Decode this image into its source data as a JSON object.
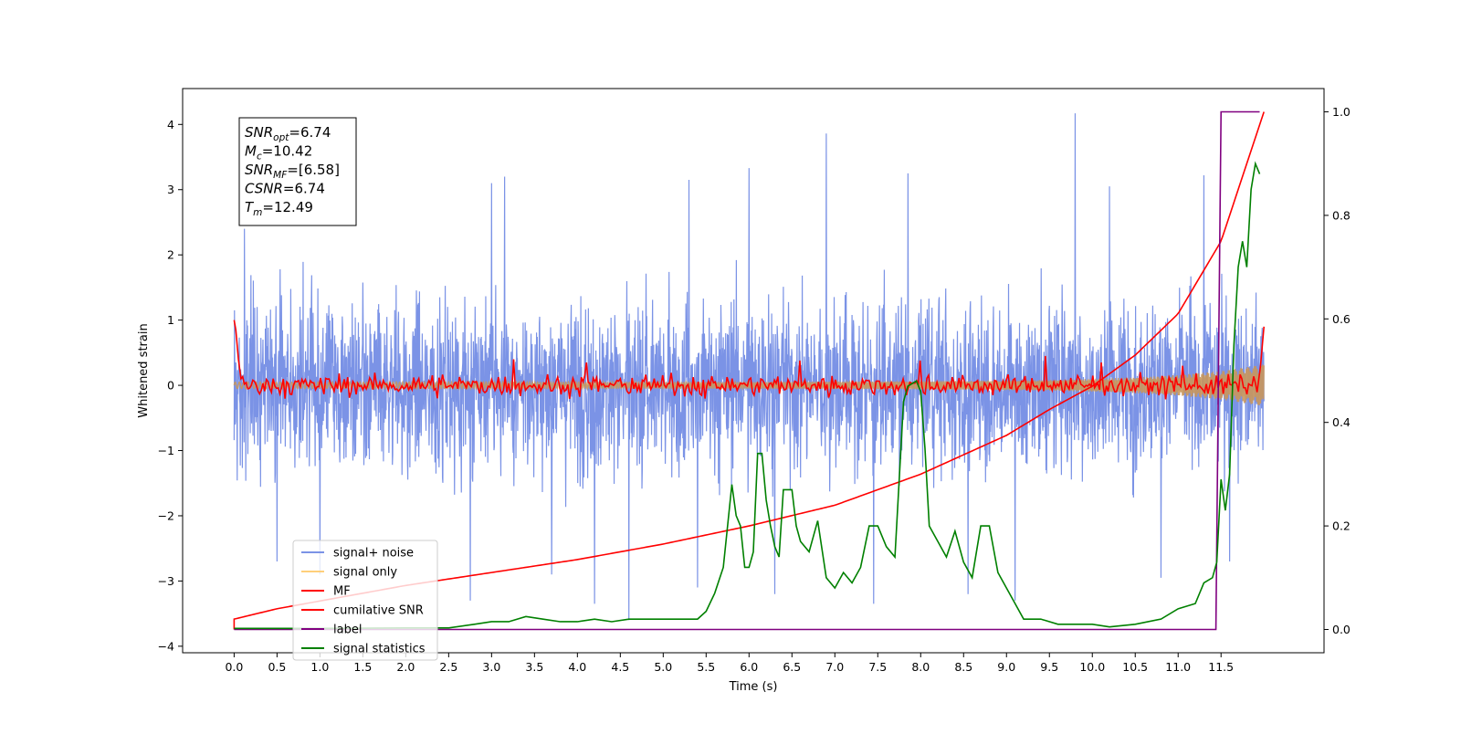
{
  "chart_data": {
    "type": "line",
    "xlabel": "Time (s)",
    "ylabel_left": "Whitened strain",
    "ylabel_right": "",
    "xlim": [
      -0.6,
      12.7
    ],
    "ylim_left": [
      -4.1,
      4.55
    ],
    "ylim_right": [
      -0.045,
      1.045
    ],
    "x_ticks": [
      0.0,
      0.5,
      1.0,
      1.5,
      2.0,
      2.5,
      3.0,
      3.5,
      4.0,
      4.5,
      5.0,
      5.5,
      6.0,
      6.5,
      7.0,
      7.5,
      8.0,
      8.5,
      9.0,
      9.5,
      10.0,
      10.5,
      11.0,
      11.5
    ],
    "x_tick_labels": [
      "0.0",
      "0.5",
      "1.0",
      "1.5",
      "2.0",
      "2.5",
      "3.0",
      "3.5",
      "4.0",
      "4.5",
      "5.0",
      "5.5",
      "6.0",
      "6.5",
      "7.0",
      "7.5",
      "8.0",
      "8.5",
      "9.0",
      "9.5",
      "10.0",
      "10.5",
      "11.0",
      "11.5"
    ],
    "y_left_ticks": [
      4,
      3,
      2,
      1,
      0,
      -1,
      -2,
      -3,
      -4
    ],
    "y_left_tick_labels": [
      "4",
      "3",
      "2",
      "1",
      "0",
      "−1",
      "−2",
      "−3",
      "−4"
    ],
    "y_right_ticks": [
      1.0,
      0.8,
      0.6,
      0.4,
      0.2,
      0.0
    ],
    "y_right_tick_labels": [
      "1.0",
      "0.8",
      "0.6",
      "0.4",
      "0.2",
      "0.0"
    ],
    "grid": false,
    "legend_position": "lower-left",
    "info_box": [
      {
        "base": "SNR",
        "sub": "opt",
        "value": "=6.74"
      },
      {
        "base": "M",
        "sub": "c",
        "value": "=10.42"
      },
      {
        "base": "SNR",
        "sub": "MF",
        "value": "=[6.58]"
      },
      {
        "base": "CSNR",
        "sub": "",
        "value": "=6.74"
      },
      {
        "base": "T",
        "sub": "m",
        "value": "=12.49"
      }
    ],
    "series": [
      {
        "name": "signal+ noise",
        "axis": "left",
        "color": "#7b93e6",
        "description_values": "noisy whitened strain, roughly between -2.3 and 2.3 with peaks up to 4.17 near 9.8 s and dips to -3.6 near 4.6 s",
        "x_range": [
          0.0,
          12.0
        ],
        "envelope": {
          "upper": 2.1,
          "lower": -2.2
        },
        "peaks": [
          [
            0.12,
            2.4
          ],
          [
            3.0,
            3.1
          ],
          [
            3.15,
            3.2
          ],
          [
            5.3,
            3.15
          ],
          [
            6.0,
            3.33
          ],
          [
            6.9,
            3.86
          ],
          [
            7.85,
            3.25
          ],
          [
            9.8,
            4.17
          ],
          [
            10.2,
            3.05
          ],
          [
            11.3,
            3.22
          ]
        ],
        "dips": [
          [
            0.5,
            -2.7
          ],
          [
            1.0,
            -2.9
          ],
          [
            2.75,
            -3.3
          ],
          [
            3.7,
            -2.9
          ],
          [
            4.2,
            -3.35
          ],
          [
            4.6,
            -3.6
          ],
          [
            5.4,
            -3.1
          ],
          [
            6.3,
            -3.2
          ],
          [
            7.45,
            -3.35
          ],
          [
            8.55,
            -3.2
          ],
          [
            9.1,
            -3.3
          ],
          [
            10.8,
            -2.95
          ],
          [
            11.6,
            -2.7
          ]
        ]
      },
      {
        "name": "signal only",
        "axis": "left",
        "color": "#ffcf7a",
        "x": [
          0.0,
          6.0,
          8.0,
          9.5,
          10.5,
          11.0,
          11.5,
          12.0
        ],
        "amplitude": [
          0.05,
          0.05,
          0.06,
          0.08,
          0.12,
          0.16,
          0.22,
          0.32
        ]
      },
      {
        "name": "MF",
        "axis": "left",
        "color": "#ff0000",
        "start_value": 1.0,
        "end_value": 0.9,
        "noise_amplitude": 0.12,
        "x_range": [
          0.0,
          12.0
        ]
      },
      {
        "name": "cumilative SNR",
        "axis": "right",
        "color": "#ff0000",
        "x": [
          0.0,
          0.5,
          1.0,
          2.0,
          3.0,
          4.0,
          5.0,
          6.0,
          7.0,
          8.0,
          9.0,
          9.5,
          10.0,
          10.5,
          11.0,
          11.5,
          12.0
        ],
        "y": [
          0.02,
          0.04,
          0.055,
          0.085,
          0.11,
          0.135,
          0.165,
          0.2,
          0.24,
          0.3,
          0.375,
          0.425,
          0.47,
          0.53,
          0.61,
          0.75,
          1.0
        ]
      },
      {
        "name": "label",
        "axis": "right",
        "color": "#800080",
        "x": [
          0.0,
          11.44,
          11.5,
          11.95
        ],
        "y": [
          0.0,
          0.0,
          1.0,
          1.0
        ]
      },
      {
        "name": "signal statistics",
        "axis": "right",
        "color": "#008000",
        "x": [
          0.0,
          1.0,
          2.0,
          2.5,
          2.8,
          3.0,
          3.2,
          3.4,
          3.6,
          3.8,
          4.0,
          4.2,
          4.4,
          4.6,
          4.8,
          5.0,
          5.2,
          5.4,
          5.5,
          5.6,
          5.7,
          5.8,
          5.85,
          5.9,
          5.95,
          6.0,
          6.05,
          6.1,
          6.15,
          6.2,
          6.25,
          6.3,
          6.35,
          6.4,
          6.5,
          6.55,
          6.6,
          6.7,
          6.8,
          6.9,
          7.0,
          7.1,
          7.2,
          7.3,
          7.4,
          7.5,
          7.6,
          7.7,
          7.8,
          7.85,
          7.95,
          8.0,
          8.05,
          8.1,
          8.2,
          8.3,
          8.4,
          8.5,
          8.6,
          8.7,
          8.8,
          8.9,
          9.0,
          9.1,
          9.2,
          9.3,
          9.4,
          9.6,
          9.8,
          10.0,
          10.2,
          10.5,
          10.8,
          11.0,
          11.2,
          11.3,
          11.4,
          11.45,
          11.5,
          11.55,
          11.6,
          11.65,
          11.7,
          11.75,
          11.8,
          11.85,
          11.9,
          11.95
        ],
        "y": [
          0.002,
          0.002,
          0.003,
          0.003,
          0.01,
          0.015,
          0.015,
          0.025,
          0.02,
          0.015,
          0.015,
          0.02,
          0.015,
          0.02,
          0.02,
          0.02,
          0.02,
          0.02,
          0.035,
          0.07,
          0.12,
          0.28,
          0.22,
          0.2,
          0.12,
          0.12,
          0.15,
          0.34,
          0.34,
          0.25,
          0.2,
          0.16,
          0.14,
          0.27,
          0.27,
          0.2,
          0.17,
          0.15,
          0.21,
          0.1,
          0.08,
          0.11,
          0.09,
          0.12,
          0.2,
          0.2,
          0.16,
          0.14,
          0.44,
          0.47,
          0.48,
          0.46,
          0.35,
          0.2,
          0.17,
          0.14,
          0.19,
          0.13,
          0.1,
          0.2,
          0.2,
          0.11,
          0.08,
          0.05,
          0.02,
          0.02,
          0.02,
          0.01,
          0.01,
          0.01,
          0.005,
          0.01,
          0.02,
          0.04,
          0.05,
          0.09,
          0.1,
          0.13,
          0.29,
          0.23,
          0.3,
          0.55,
          0.7,
          0.75,
          0.7,
          0.85,
          0.9,
          0.88
        ]
      }
    ]
  }
}
